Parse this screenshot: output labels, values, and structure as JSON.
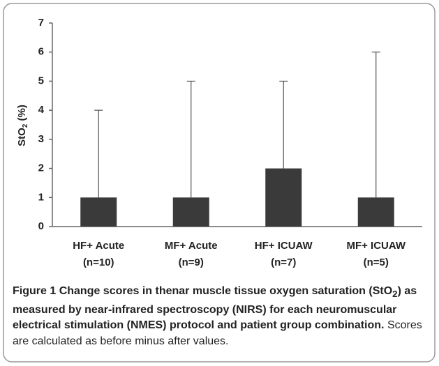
{
  "chart_data": {
    "type": "bar",
    "categories": [
      [
        "HF+ Acute",
        "(n=10)"
      ],
      [
        "MF+ Acute",
        "(n=9)"
      ],
      [
        "HF+ ICUAW",
        "(n=7)"
      ],
      [
        "MF+ ICUAW",
        "(n=5)"
      ]
    ],
    "values": [
      1,
      1,
      2,
      1
    ],
    "errors": [
      3,
      4,
      3,
      5
    ],
    "color": "#3a3a3a",
    "y_label": [
      "StO",
      "2",
      " (%)"
    ],
    "ylim": [
      0,
      7
    ],
    "yticks": [
      0,
      1,
      2,
      3,
      4,
      5,
      6,
      7
    ],
    "grid": false,
    "caption": {
      "label": "Figure 1",
      "bold": [
        "Change scores in thenar muscle tissue oxygen saturation (StO",
        "2",
        ") as measured by near-infrared spectroscopy (NIRS) for each neuromuscular electrical stimulation (NMES) protocol and patient group combination."
      ],
      "text": "Scores are calculated as before minus after values."
    }
  }
}
